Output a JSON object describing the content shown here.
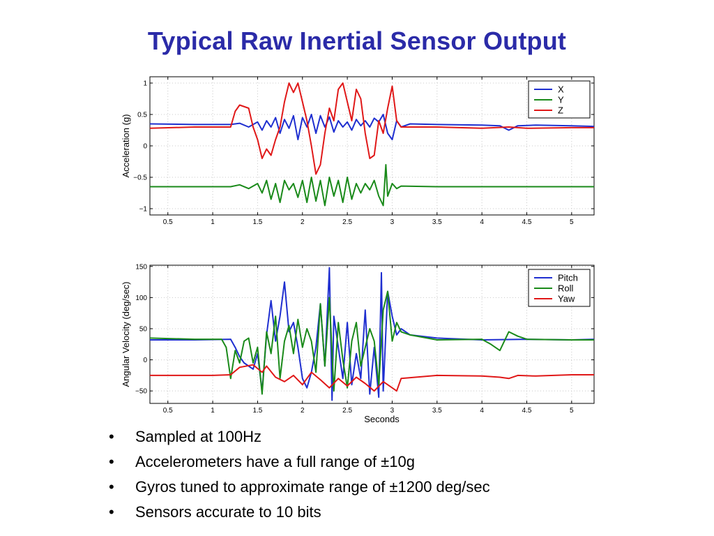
{
  "title": "Typical Raw Inertial Sensor Output",
  "bullets": [
    "Sampled at 100Hz",
    "Accelerometers have a full range of ±10g",
    "Gyros tuned to approximate range of ±1200 deg/sec",
    "Sensors accurate to 10 bits"
  ],
  "bullet_glyph": "•",
  "chart_data": [
    {
      "type": "line",
      "title": "",
      "xlabel": "",
      "ylabel": "Acceleration (g)",
      "xlim": [
        0.3,
        5.25
      ],
      "ylim": [
        -1.1,
        1.1
      ],
      "xticks": [
        0.5,
        1,
        1.5,
        2,
        2.5,
        3,
        3.5,
        4,
        4.5,
        5
      ],
      "xtick_labels": [
        "0.5",
        "1",
        "1.5",
        "2",
        "2.5",
        "3",
        "3.5",
        "4",
        "4.5",
        "5"
      ],
      "yticks": [
        1,
        0.5,
        0,
        -0.5,
        -1
      ],
      "ytick_labels": [
        "1",
        "0.5",
        "0",
        "−0.5",
        "−1"
      ],
      "grid": true,
      "legend": "top-right",
      "series": [
        {
          "name": "X",
          "color": "#1f2fd0",
          "x": [
            0.3,
            0.8,
            1.2,
            1.3,
            1.4,
            1.5,
            1.55,
            1.6,
            1.65,
            1.7,
            1.75,
            1.8,
            1.85,
            1.9,
            1.95,
            2.0,
            2.05,
            2.1,
            2.15,
            2.2,
            2.25,
            2.3,
            2.35,
            2.4,
            2.45,
            2.5,
            2.55,
            2.6,
            2.65,
            2.7,
            2.75,
            2.8,
            2.85,
            2.9,
            2.95,
            3.0,
            3.05,
            3.1,
            3.2,
            3.5,
            4.0,
            4.2,
            4.3,
            4.4,
            4.6,
            5.0,
            5.25
          ],
          "y": [
            0.35,
            0.34,
            0.34,
            0.36,
            0.3,
            0.38,
            0.25,
            0.4,
            0.3,
            0.45,
            0.2,
            0.42,
            0.28,
            0.48,
            0.1,
            0.45,
            0.3,
            0.5,
            0.2,
            0.48,
            0.3,
            0.46,
            0.22,
            0.4,
            0.3,
            0.38,
            0.25,
            0.42,
            0.32,
            0.4,
            0.3,
            0.44,
            0.38,
            0.5,
            0.2,
            0.1,
            0.4,
            0.3,
            0.35,
            0.34,
            0.33,
            0.32,
            0.25,
            0.32,
            0.33,
            0.32,
            0.31
          ]
        },
        {
          "name": "Y",
          "color": "#1a8a1a",
          "x": [
            0.3,
            0.8,
            1.2,
            1.3,
            1.4,
            1.5,
            1.55,
            1.6,
            1.65,
            1.7,
            1.75,
            1.8,
            1.85,
            1.9,
            1.95,
            2.0,
            2.05,
            2.1,
            2.15,
            2.2,
            2.25,
            2.3,
            2.35,
            2.4,
            2.45,
            2.5,
            2.55,
            2.6,
            2.65,
            2.7,
            2.75,
            2.8,
            2.85,
            2.9,
            2.93,
            2.95,
            3.0,
            3.05,
            3.1,
            3.5,
            4.0,
            4.5,
            5.0,
            5.25
          ],
          "y": [
            -0.65,
            -0.65,
            -0.65,
            -0.62,
            -0.68,
            -0.6,
            -0.75,
            -0.55,
            -0.85,
            -0.6,
            -0.9,
            -0.55,
            -0.7,
            -0.6,
            -0.82,
            -0.55,
            -0.9,
            -0.5,
            -0.88,
            -0.55,
            -0.95,
            -0.5,
            -0.8,
            -0.55,
            -0.9,
            -0.5,
            -0.85,
            -0.6,
            -0.75,
            -0.6,
            -0.7,
            -0.55,
            -0.8,
            -0.95,
            -0.3,
            -0.8,
            -0.6,
            -0.68,
            -0.64,
            -0.65,
            -0.65,
            -0.65,
            -0.65,
            -0.65
          ]
        },
        {
          "name": "Z",
          "color": "#e01818",
          "x": [
            0.3,
            0.8,
            1.2,
            1.25,
            1.3,
            1.4,
            1.45,
            1.5,
            1.55,
            1.6,
            1.65,
            1.7,
            1.75,
            1.8,
            1.85,
            1.9,
            1.95,
            2.0,
            2.05,
            2.1,
            2.15,
            2.2,
            2.25,
            2.3,
            2.35,
            2.4,
            2.45,
            2.5,
            2.55,
            2.6,
            2.65,
            2.7,
            2.75,
            2.8,
            2.85,
            2.9,
            2.95,
            3.0,
            3.05,
            3.1,
            3.15,
            3.5,
            4.0,
            4.3,
            4.5,
            5.0,
            5.25
          ],
          "y": [
            0.28,
            0.3,
            0.3,
            0.55,
            0.65,
            0.6,
            0.3,
            0.1,
            -0.2,
            -0.05,
            -0.15,
            0.1,
            0.3,
            0.7,
            1.0,
            0.85,
            1.0,
            0.7,
            0.4,
            0.0,
            -0.45,
            -0.3,
            0.2,
            0.6,
            0.4,
            0.9,
            1.0,
            0.7,
            0.4,
            0.9,
            0.75,
            0.2,
            -0.2,
            -0.15,
            0.4,
            0.2,
            0.6,
            0.95,
            0.4,
            0.3,
            0.3,
            0.3,
            0.28,
            0.3,
            0.28,
            0.29,
            0.29
          ]
        }
      ]
    },
    {
      "type": "line",
      "title": "",
      "xlabel": "Seconds",
      "ylabel": "Angular Velocity (deg/sec)",
      "xlim": [
        0.3,
        5.25
      ],
      "ylim": [
        -70,
        152
      ],
      "xticks": [
        0.5,
        1,
        1.5,
        2,
        2.5,
        3,
        3.5,
        4,
        4.5,
        5
      ],
      "xtick_labels": [
        "0.5",
        "1",
        "1.5",
        "2",
        "2.5",
        "3",
        "3.5",
        "4",
        "4.5",
        "5"
      ],
      "yticks": [
        150,
        100,
        50,
        0,
        -50
      ],
      "ytick_labels": [
        "150",
        "100",
        "50",
        "0",
        "−50"
      ],
      "grid": true,
      "legend": "top-right",
      "series": [
        {
          "name": "Pitch",
          "color": "#1f2fd0",
          "x": [
            0.3,
            0.8,
            1.2,
            1.25,
            1.3,
            1.35,
            1.4,
            1.45,
            1.5,
            1.55,
            1.6,
            1.65,
            1.7,
            1.75,
            1.8,
            1.85,
            1.9,
            1.95,
            2.0,
            2.05,
            2.1,
            2.15,
            2.2,
            2.25,
            2.3,
            2.33,
            2.35,
            2.4,
            2.45,
            2.5,
            2.55,
            2.6,
            2.65,
            2.7,
            2.75,
            2.8,
            2.85,
            2.88,
            2.9,
            2.95,
            3.0,
            3.05,
            3.1,
            3.2,
            3.5,
            4.0,
            4.5,
            5.0,
            5.25
          ],
          "y": [
            32,
            32,
            33,
            20,
            5,
            -5,
            -10,
            -15,
            10,
            -50,
            40,
            95,
            30,
            70,
            125,
            45,
            60,
            20,
            -30,
            -45,
            -20,
            20,
            90,
            -10,
            148,
            -65,
            70,
            20,
            -30,
            60,
            -40,
            10,
            -30,
            80,
            -55,
            20,
            -60,
            140,
            -50,
            110,
            70,
            40,
            50,
            40,
            35,
            32,
            33,
            32,
            33
          ]
        },
        {
          "name": "Roll",
          "color": "#1a8a1a",
          "x": [
            0.3,
            0.8,
            1.1,
            1.15,
            1.2,
            1.25,
            1.3,
            1.35,
            1.4,
            1.45,
            1.5,
            1.55,
            1.6,
            1.65,
            1.7,
            1.75,
            1.8,
            1.85,
            1.9,
            1.95,
            2.0,
            2.05,
            2.1,
            2.15,
            2.2,
            2.25,
            2.3,
            2.35,
            2.4,
            2.45,
            2.5,
            2.55,
            2.6,
            2.65,
            2.7,
            2.75,
            2.8,
            2.85,
            2.9,
            2.95,
            3.0,
            3.05,
            3.1,
            3.2,
            3.5,
            4.0,
            4.1,
            4.2,
            4.3,
            4.4,
            4.5,
            5.0,
            5.25
          ],
          "y": [
            35,
            33,
            33,
            20,
            -30,
            15,
            -5,
            30,
            35,
            -5,
            20,
            -55,
            45,
            10,
            70,
            -30,
            30,
            55,
            10,
            65,
            20,
            50,
            30,
            -20,
            90,
            -10,
            100,
            -50,
            60,
            0,
            -45,
            30,
            60,
            -10,
            20,
            50,
            30,
            -40,
            80,
            110,
            30,
            60,
            45,
            40,
            32,
            33,
            25,
            15,
            45,
            38,
            33,
            32,
            32
          ]
        },
        {
          "name": "Yaw",
          "color": "#e01818",
          "x": [
            0.3,
            1.0,
            1.2,
            1.3,
            1.45,
            1.55,
            1.6,
            1.7,
            1.8,
            1.9,
            2.0,
            2.1,
            2.2,
            2.3,
            2.4,
            2.5,
            2.6,
            2.7,
            2.8,
            2.9,
            3.0,
            3.05,
            3.1,
            3.5,
            4.0,
            4.2,
            4.3,
            4.4,
            4.6,
            5.0,
            5.25
          ],
          "y": [
            -25,
            -25,
            -24,
            -12,
            -8,
            -20,
            -10,
            -28,
            -35,
            -25,
            -40,
            -20,
            -32,
            -45,
            -30,
            -42,
            -28,
            -38,
            -50,
            -35,
            -45,
            -50,
            -30,
            -25,
            -26,
            -28,
            -30,
            -25,
            -26,
            -24,
            -24
          ]
        }
      ]
    }
  ]
}
